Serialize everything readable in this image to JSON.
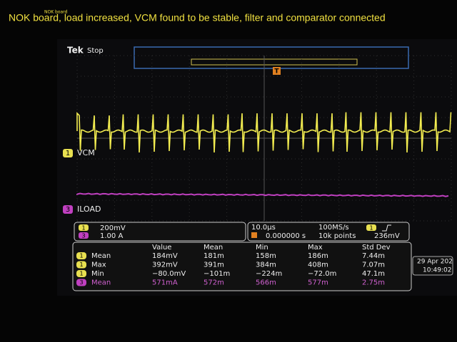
{
  "caption": {
    "small": "NOK board",
    "main": "NOK board, load increased, VCM found to be stable, filter and comparator connected"
  },
  "header": {
    "brand": "Tek",
    "state": "Stop",
    "trigger_marker": "T"
  },
  "channels": [
    {
      "number": "1",
      "label": "VCM",
      "scale": "200mV"
    },
    {
      "number": "3",
      "label": "ILOAD",
      "scale": "1.00 A"
    }
  ],
  "timebase": {
    "horizontal": "10.0µs",
    "position": "0.000000 s",
    "sample_rate": "100MS/s",
    "record": "10k points",
    "trigger_channel": "1",
    "trigger_level": "236mV"
  },
  "measurements": {
    "headers": [
      "Value",
      "Mean",
      "Min",
      "Max",
      "Std Dev"
    ],
    "rows": [
      {
        "channel": "1",
        "name": "Mean",
        "cells": [
          "184mV",
          "181m",
          "158m",
          "186m",
          "7.44m"
        ]
      },
      {
        "channel": "1",
        "name": "Max",
        "cells": [
          "392mV",
          "391m",
          "384m",
          "408m",
          "7.07m"
        ]
      },
      {
        "channel": "1",
        "name": "Min",
        "cells": [
          "−80.0mV",
          "−101m",
          "−224m",
          "−72.0m",
          "47.1m"
        ]
      },
      {
        "channel": "3",
        "name": "Mean",
        "cells": [
          "571mA",
          "572m",
          "566m",
          "577m",
          "2.75m"
        ]
      }
    ]
  },
  "clock": {
    "date": "29 Apr 202",
    "time": "10:49:02"
  }
}
